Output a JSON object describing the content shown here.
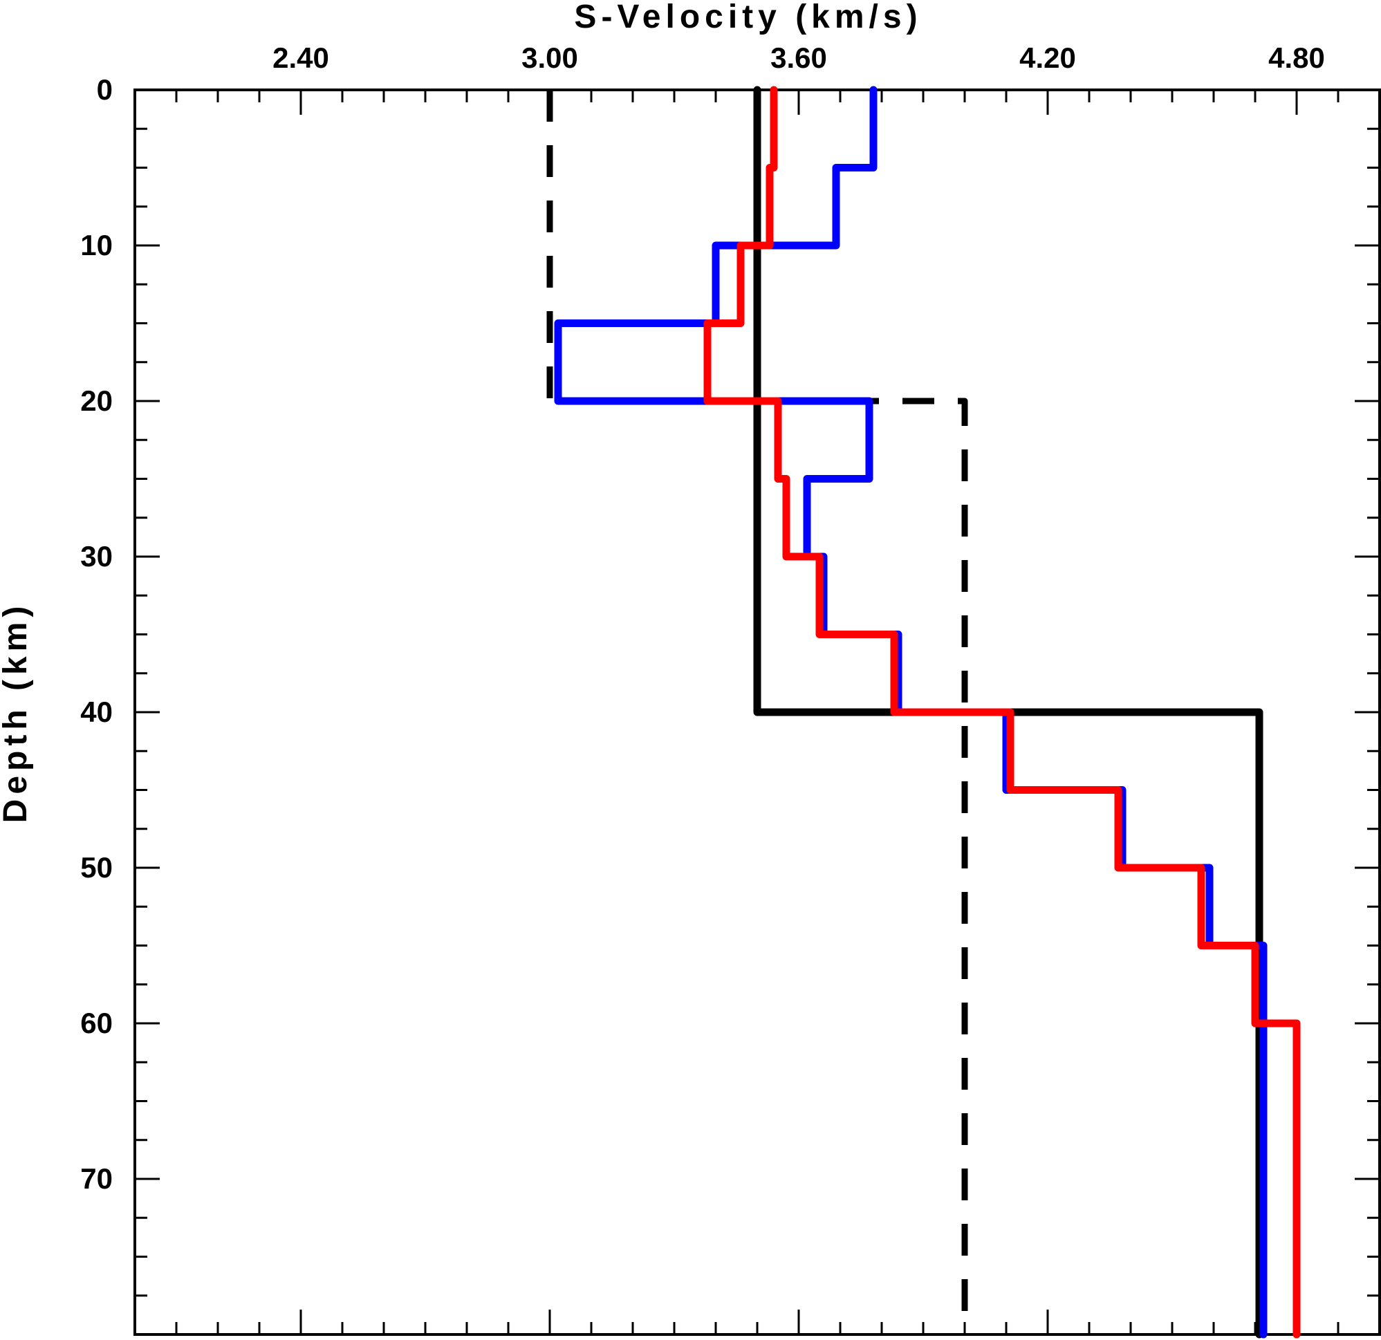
{
  "chart_data": {
    "type": "line",
    "xlabel": "S-Velocity (km/s)",
    "ylabel": "Depth (km)",
    "xlim": [
      2.0,
      5.0
    ],
    "ylim": [
      0,
      80
    ],
    "y_inverted": true,
    "x_axis_position": "top",
    "grid": false,
    "legend": "none",
    "x_ticks": [
      2.4,
      3.0,
      3.6,
      4.2,
      4.8
    ],
    "x_tick_labels": [
      "2.40",
      "3.00",
      "3.60",
      "4.20",
      "4.80"
    ],
    "y_ticks": [
      0,
      10,
      20,
      30,
      40,
      50,
      60,
      70
    ],
    "y_tick_labels": [
      "0",
      "10",
      "20",
      "30",
      "40",
      "50",
      "60",
      "70"
    ],
    "series": [
      {
        "color": "#000000",
        "style": "dashed",
        "points": [
          [
            3.0,
            0
          ],
          [
            3.0,
            20
          ],
          [
            4.0,
            20
          ],
          [
            4.0,
            80
          ]
        ]
      },
      {
        "color": "#000000",
        "style": "solid",
        "points": [
          [
            3.5,
            0
          ],
          [
            3.5,
            40
          ],
          [
            4.71,
            40
          ],
          [
            4.71,
            80
          ]
        ]
      },
      {
        "color": "#0000ff",
        "style": "solid",
        "points": [
          [
            3.78,
            0
          ],
          [
            3.78,
            5
          ],
          [
            3.69,
            5
          ],
          [
            3.69,
            10
          ],
          [
            3.4,
            10
          ],
          [
            3.4,
            15
          ],
          [
            3.02,
            15
          ],
          [
            3.02,
            20
          ],
          [
            3.77,
            20
          ],
          [
            3.77,
            25
          ],
          [
            3.62,
            25
          ],
          [
            3.62,
            30
          ],
          [
            3.66,
            30
          ],
          [
            3.66,
            35
          ],
          [
            3.84,
            35
          ],
          [
            3.84,
            40
          ],
          [
            4.1,
            40
          ],
          [
            4.1,
            45
          ],
          [
            4.38,
            45
          ],
          [
            4.38,
            50
          ],
          [
            4.59,
            50
          ],
          [
            4.59,
            55
          ],
          [
            4.72,
            55
          ],
          [
            4.72,
            80
          ]
        ]
      },
      {
        "color": "#ff0000",
        "style": "solid",
        "points": [
          [
            3.54,
            0
          ],
          [
            3.54,
            5
          ],
          [
            3.53,
            5
          ],
          [
            3.53,
            10
          ],
          [
            3.46,
            10
          ],
          [
            3.46,
            15
          ],
          [
            3.38,
            15
          ],
          [
            3.38,
            20
          ],
          [
            3.55,
            20
          ],
          [
            3.55,
            25
          ],
          [
            3.57,
            25
          ],
          [
            3.57,
            30
          ],
          [
            3.65,
            30
          ],
          [
            3.65,
            35
          ],
          [
            3.83,
            35
          ],
          [
            3.83,
            40
          ],
          [
            4.11,
            40
          ],
          [
            4.11,
            45
          ],
          [
            4.37,
            45
          ],
          [
            4.37,
            50
          ],
          [
            4.57,
            50
          ],
          [
            4.57,
            55
          ],
          [
            4.7,
            55
          ],
          [
            4.7,
            60
          ],
          [
            4.8,
            60
          ],
          [
            4.8,
            80
          ]
        ]
      }
    ]
  }
}
